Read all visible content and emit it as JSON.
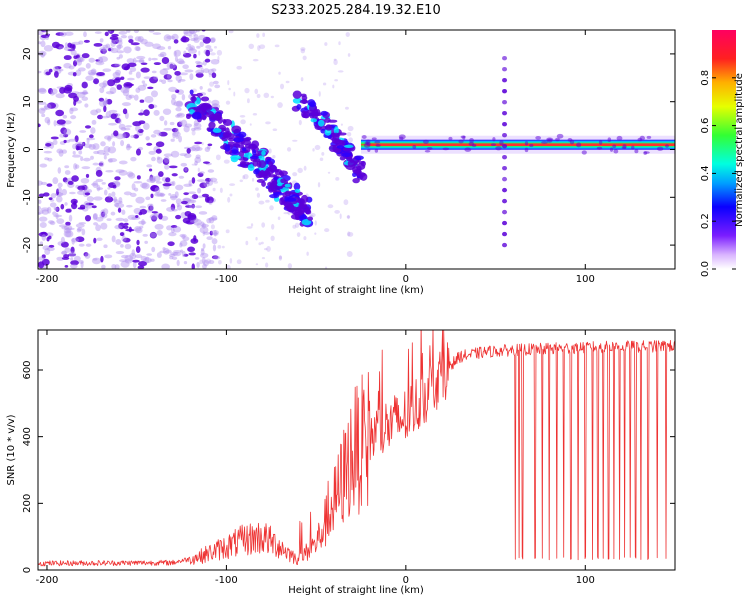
{
  "title": "S233.2025.284.19.32.E10",
  "colors": {
    "snr_line": "#ee3333",
    "scatter_low": "#b08ff0",
    "scatter_high": "#5a00d8",
    "ridge": "#ff3030",
    "frame": "#000000"
  },
  "chart_data": [
    {
      "type": "heatmap",
      "panel": "spectrogram",
      "title": "S233.2025.284.19.32.E10",
      "xlabel": "Height of straight line (km)",
      "ylabel": "Frequency (Hz)",
      "xlim": [
        -205,
        150
      ],
      "ylim": [
        -25,
        25
      ],
      "xticks": [
        -200,
        -100,
        0,
        100
      ],
      "yticks": [
        -20,
        -10,
        0,
        10,
        20
      ],
      "xtick_labels": [
        "-200",
        "-100",
        "0",
        "100"
      ],
      "ytick_labels": [
        "-20",
        "-10",
        "0",
        "10",
        "20"
      ],
      "colorbar": {
        "label": "Normalized spectral amplitude",
        "range": [
          0,
          1
        ],
        "ticks": [
          0.0,
          0.2,
          0.4,
          0.6,
          0.8
        ],
        "tick_labels": [
          "0.0",
          "0.2",
          "0.4",
          "0.6",
          "0.8"
        ]
      },
      "features": {
        "noise_region_x": [
          -205,
          -120
        ],
        "descending_band": [
          {
            "x": -120,
            "freq": 10
          },
          {
            "x": -100,
            "freq": 3
          },
          {
            "x": -80,
            "freq": -3
          },
          {
            "x": -65,
            "freq": -10
          },
          {
            "x": -55,
            "freq": -13
          }
        ],
        "secondary_band": [
          {
            "x": -60,
            "freq": 10
          },
          {
            "x": -45,
            "freq": 5
          },
          {
            "x": -35,
            "freq": 0
          },
          {
            "x": -25,
            "freq": -5
          }
        ],
        "carrier_freq": 1,
        "carrier_x_range": [
          -25,
          150
        ],
        "vertical_spike_x": 55,
        "vertical_spike_freq_range": [
          -20,
          20
        ]
      }
    },
    {
      "type": "line",
      "panel": "snr",
      "xlabel": "Height of straight line (km)",
      "ylabel": "SNR (10 * v/v)",
      "xlim": [
        -205,
        150
      ],
      "ylim": [
        0,
        720
      ],
      "xticks": [
        -200,
        -100,
        0,
        100
      ],
      "yticks": [
        0,
        200,
        400,
        600
      ],
      "xtick_labels": [
        "-200",
        "-100",
        "0",
        "100"
      ],
      "ytick_labels": [
        "0",
        "200",
        "400",
        "600"
      ],
      "series": [
        {
          "name": "SNR",
          "envelope": [
            {
              "x": -205,
              "y": 20
            },
            {
              "x": -130,
              "y": 22
            },
            {
              "x": -115,
              "y": 40
            },
            {
              "x": -100,
              "y": 70
            },
            {
              "x": -90,
              "y": 90
            },
            {
              "x": -80,
              "y": 100
            },
            {
              "x": -70,
              "y": 70
            },
            {
              "x": -60,
              "y": 30
            },
            {
              "x": -50,
              "y": 80
            },
            {
              "x": -40,
              "y": 200
            },
            {
              "x": -30,
              "y": 350
            },
            {
              "x": -20,
              "y": 400
            },
            {
              "x": -10,
              "y": 430
            },
            {
              "x": 0,
              "y": 460
            },
            {
              "x": 10,
              "y": 520
            },
            {
              "x": 20,
              "y": 590
            },
            {
              "x": 30,
              "y": 640
            },
            {
              "x": 45,
              "y": 655
            },
            {
              "x": 60,
              "y": 660
            },
            {
              "x": 100,
              "y": 668
            },
            {
              "x": 150,
              "y": 672
            }
          ],
          "dropouts_x": [
            61,
            63,
            65,
            72,
            76,
            80,
            84,
            88,
            92,
            96,
            100,
            104,
            107,
            110,
            113,
            116,
            119,
            122,
            125,
            128,
            131,
            135,
            140,
            145
          ],
          "dropout_min_y": 30
        }
      ]
    }
  ]
}
